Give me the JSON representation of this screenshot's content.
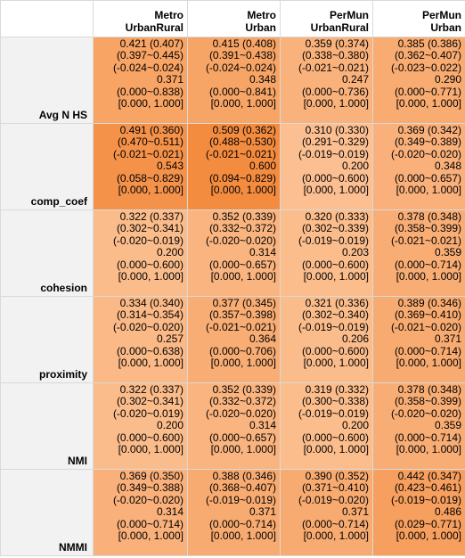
{
  "columns": [
    {
      "line1": "Metro",
      "line2": "UrbanRural"
    },
    {
      "line1": "Metro",
      "line2": "Urban"
    },
    {
      "line1": "PerMun",
      "line2": "UrbanRural"
    },
    {
      "line1": "PerMun",
      "line2": "Urban"
    }
  ],
  "rows": [
    {
      "label": "Avg N HS",
      "cells": [
        {
          "bg": "#f7a465",
          "mean": "0.421 (0.407)",
          "ci": "(0.397~0.445)",
          "diff": "(-0.024~0.024)",
          "median": "0.371",
          "range": "(0.000~0.838)",
          "bounds": "[0.000, 1.000]"
        },
        {
          "bg": "#f7a566",
          "mean": "0.415 (0.408)",
          "ci": "(0.391~0.438)",
          "diff": "(-0.024~0.024)",
          "median": "0.348",
          "range": "(0.000~0.841)",
          "bounds": "[0.000, 1.000]"
        },
        {
          "bg": "#f9b27c",
          "mean": "0.359 (0.374)",
          "ci": "(0.338~0.380)",
          "diff": "(-0.021~0.021)",
          "median": "0.247",
          "range": "(0.000~0.736)",
          "bounds": "[0.000, 1.000]"
        },
        {
          "bg": "#f8ac72",
          "mean": "0.385 (0.386)",
          "ci": "(0.362~0.407)",
          "diff": "(-0.023~0.022)",
          "median": "0.290",
          "range": "(0.000~0.771)",
          "bounds": "[0.000, 1.000]"
        }
      ]
    },
    {
      "label": "comp_coef",
      "cells": [
        {
          "bg": "#f5924a",
          "mean": "0.491 (0.360)",
          "ci": "(0.470~0.511)",
          "diff": "(-0.021~0.021)",
          "median": "0.543",
          "range": "(0.058~0.829)",
          "bounds": "[0.000, 1.000]"
        },
        {
          "bg": "#f48c40",
          "mean": "0.509 (0.362)",
          "ci": "(0.488~0.530)",
          "diff": "(-0.021~0.021)",
          "median": "0.600",
          "range": "(0.094~0.829)",
          "bounds": "[0.000, 1.000]"
        },
        {
          "bg": "#fbbf91",
          "mean": "0.310 (0.330)",
          "ci": "(0.291~0.329)",
          "diff": "(-0.019~0.019)",
          "median": "0.200",
          "range": "(0.000~0.600)",
          "bounds": "[0.000, 1.000]"
        },
        {
          "bg": "#f9b07a",
          "mean": "0.369 (0.342)",
          "ci": "(0.349~0.389)",
          "diff": "(-0.020~0.020)",
          "median": "0.348",
          "range": "(0.000~0.657)",
          "bounds": "[0.000, 1.000]"
        }
      ]
    },
    {
      "label": "cohesion",
      "cells": [
        {
          "bg": "#fbbc8b",
          "mean": "0.322 (0.337)",
          "ci": "(0.302~0.341)",
          "diff": "(-0.020~0.019)",
          "median": "0.200",
          "range": "(0.000~0.600)",
          "bounds": "[0.000, 1.000]"
        },
        {
          "bg": "#f9b47f",
          "mean": "0.352 (0.339)",
          "ci": "(0.332~0.372)",
          "diff": "(-0.020~0.020)",
          "median": "0.314",
          "range": "(0.000~0.657)",
          "bounds": "[0.000, 1.000]"
        },
        {
          "bg": "#fbbd8c",
          "mean": "0.320 (0.333)",
          "ci": "(0.302~0.339)",
          "diff": "(-0.019~0.019)",
          "median": "0.203",
          "range": "(0.000~0.600)",
          "bounds": "[0.000, 1.000]"
        },
        {
          "bg": "#f8ad75",
          "mean": "0.378 (0.348)",
          "ci": "(0.358~0.399)",
          "diff": "(-0.021~0.021)",
          "median": "0.359",
          "range": "(0.000~0.714)",
          "bounds": "[0.000, 1.000]"
        }
      ]
    },
    {
      "label": "proximity",
      "cells": [
        {
          "bg": "#fab987",
          "mean": "0.334 (0.340)",
          "ci": "(0.314~0.354)",
          "diff": "(-0.020~0.020)",
          "median": "0.257",
          "range": "(0.000~0.638)",
          "bounds": "[0.000, 1.000]"
        },
        {
          "bg": "#f8ad75",
          "mean": "0.377 (0.345)",
          "ci": "(0.357~0.398)",
          "diff": "(-0.021~0.021)",
          "median": "0.364",
          "range": "(0.000~0.706)",
          "bounds": "[0.000, 1.000]"
        },
        {
          "bg": "#fbbc8b",
          "mean": "0.321 (0.336)",
          "ci": "(0.302~0.340)",
          "diff": "(-0.019~0.019)",
          "median": "0.206",
          "range": "(0.000~0.600)",
          "bounds": "[0.000, 1.000]"
        },
        {
          "bg": "#f8ab71",
          "mean": "0.389 (0.346)",
          "ci": "(0.369~0.410)",
          "diff": "(-0.021~0.020)",
          "median": "0.371",
          "range": "(0.000~0.714)",
          "bounds": "[0.000, 1.000]"
        }
      ]
    },
    {
      "label": "NMI",
      "cells": [
        {
          "bg": "#fbbc8b",
          "mean": "0.322 (0.337)",
          "ci": "(0.302~0.341)",
          "diff": "(-0.020~0.019)",
          "median": "0.200",
          "range": "(0.000~0.600)",
          "bounds": "[0.000, 1.000]"
        },
        {
          "bg": "#f9b47f",
          "mean": "0.352 (0.339)",
          "ci": "(0.332~0.372)",
          "diff": "(-0.020~0.020)",
          "median": "0.314",
          "range": "(0.000~0.657)",
          "bounds": "[0.000, 1.000]"
        },
        {
          "bg": "#fbbd8c",
          "mean": "0.319 (0.332)",
          "ci": "(0.300~0.338)",
          "diff": "(-0.019~0.019)",
          "median": "0.200",
          "range": "(0.000~0.600)",
          "bounds": "[0.000, 1.000]"
        },
        {
          "bg": "#f8ad75",
          "mean": "0.378 (0.348)",
          "ci": "(0.358~0.399)",
          "diff": "(-0.020~0.020)",
          "median": "0.359",
          "range": "(0.000~0.714)",
          "bounds": "[0.000, 1.000]"
        }
      ]
    },
    {
      "label": "NMMI",
      "cells": [
        {
          "bg": "#f9b07a",
          "mean": "0.369 (0.350)",
          "ci": "(0.349~0.388)",
          "diff": "(-0.020~0.020)",
          "median": "0.314",
          "range": "(0.000~0.714)",
          "bounds": "[0.000, 1.000]"
        },
        {
          "bg": "#f8ab71",
          "mean": "0.388 (0.346)",
          "ci": "(0.368~0.407)",
          "diff": "(-0.019~0.019)",
          "median": "0.371",
          "range": "(0.000~0.714)",
          "bounds": "[0.000, 1.000]"
        },
        {
          "bg": "#f8ab70",
          "mean": "0.390 (0.352)",
          "ci": "(0.371~0.410)",
          "diff": "(-0.019~0.020)",
          "median": "0.371",
          "range": "(0.000~0.714)",
          "bounds": "[0.000, 1.000]"
        },
        {
          "bg": "#f69f5e",
          "mean": "0.442 (0.347)",
          "ci": "(0.423~0.461)",
          "diff": "(-0.019~0.019)",
          "median": "0.486",
          "range": "(0.029~0.771)",
          "bounds": "[0.000, 1.000]"
        }
      ]
    }
  ]
}
